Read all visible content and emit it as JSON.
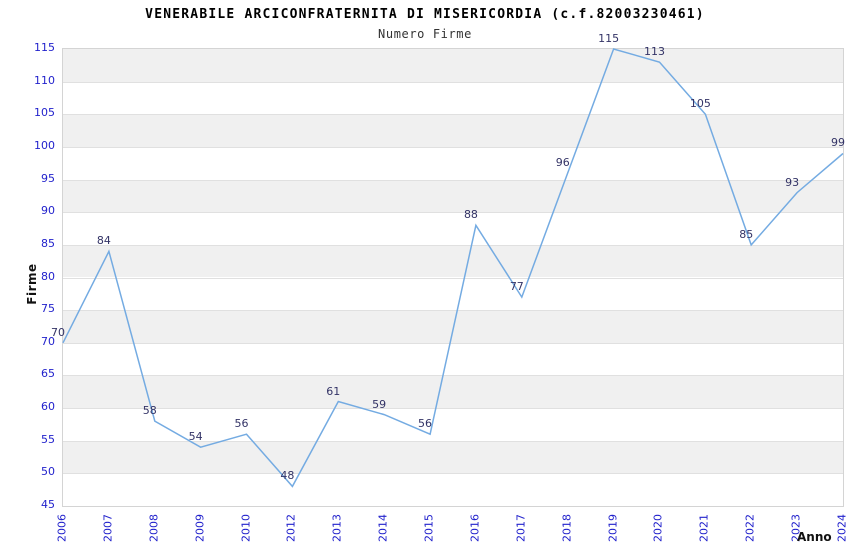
{
  "chart_data": {
    "type": "line",
    "title": "VENERABILE ARCICONFRATERNITA DI MISERICORDIA (c.f.82003230461)",
    "subtitle": "Numero Firme",
    "xlabel": "Anno",
    "ylabel": "Firme",
    "categories": [
      "2006",
      "2007",
      "2008",
      "2009",
      "2010",
      "2012",
      "2013",
      "2014",
      "2015",
      "2016",
      "2017",
      "2018",
      "2019",
      "2020",
      "2021",
      "2022",
      "2023",
      "2024"
    ],
    "values": [
      70,
      84,
      58,
      54,
      56,
      48,
      61,
      59,
      56,
      88,
      77,
      96,
      115,
      113,
      105,
      85,
      93,
      99
    ],
    "ylim": [
      45,
      115
    ],
    "ytick_step": 5,
    "grid": "horizontal-only",
    "legend": "none",
    "colors": {
      "line": "#74abe2",
      "point_label": "#333366",
      "axis_tick": "#2222cc",
      "band_fill": "#f0f0f0",
      "gridline": "#e0e0e0",
      "plot_border": "#d4d4d4",
      "title": "#000000",
      "subtitle": "#333333",
      "axis_title": "#111111"
    }
  }
}
